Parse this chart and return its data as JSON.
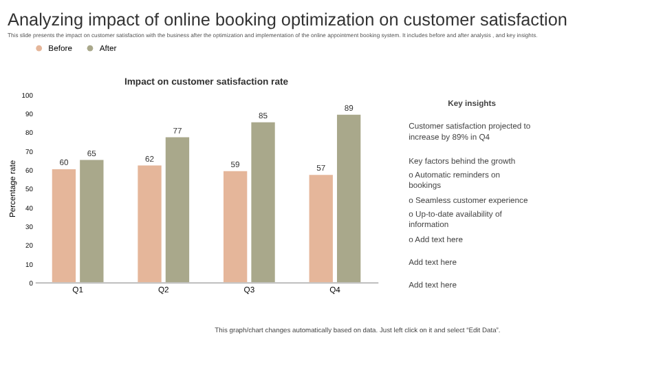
{
  "chart_data": {
    "type": "bar",
    "title": "Analyzing impact of online booking optimization on customer satisfaction",
    "subtitle": "This slide presents the impact on customer satisfaction with the business after the optimization and implementation of the online appointment booking system. It includes before and after analysis , and key insights.",
    "annotations": [
      "Impact on customer satisfaction rate",
      "Key insights",
      "Customer satisfaction projected to increase by 89% in Q4",
      "Key factors behind the growth",
      "o   Automatic reminders on bookings",
      "o   Seamless customer experience",
      "o   Up-to-date availability of information",
      "o   Add text here",
      "Add text here",
      "Add text here",
      "This graph/chart changes automatically based on data. Just left click on it and select “Edit Data”."
    ],
    "ylabel": "Percentage rate",
    "categories": [
      "Q1",
      "Q2",
      "Q3",
      "Q4"
    ],
    "series": [
      {
        "name": "Before",
        "color": "#e5b69a",
        "values": [
          60,
          62,
          59,
          57
        ]
      },
      {
        "name": "After",
        "color": "#a9a88b",
        "values": [
          65,
          77,
          85,
          89
        ]
      }
    ],
    "ylim": [
      0,
      100
    ],
    "yticks": [
      0,
      10,
      20,
      30,
      40,
      50,
      60,
      70,
      80,
      90,
      100
    ],
    "data_labels": true,
    "legend": "top",
    "grid": false
  }
}
